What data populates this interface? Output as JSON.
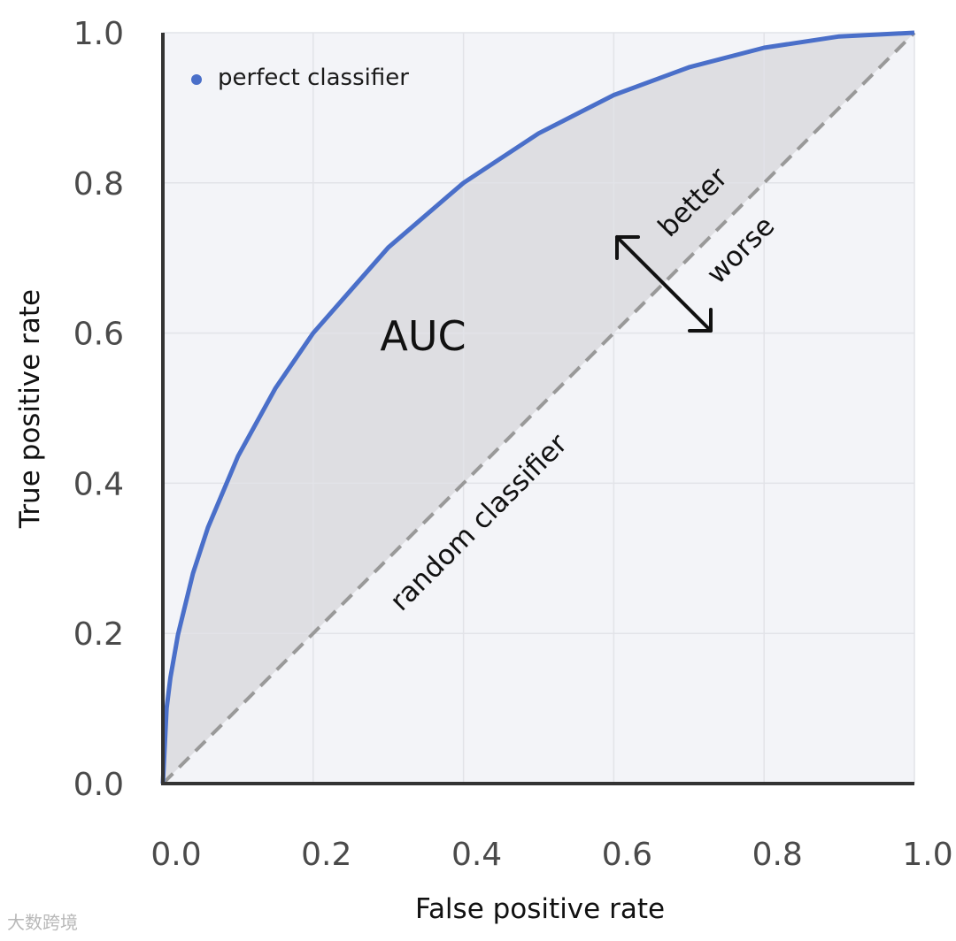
{
  "chart_data": {
    "type": "line",
    "xlabel": "False positive rate",
    "ylabel": "True positive rate",
    "xlim": [
      0.0,
      1.0
    ],
    "ylim": [
      0.0,
      1.0
    ],
    "x_ticks": [
      "0.0",
      "0.2",
      "0.4",
      "0.6",
      "0.8",
      "1.0"
    ],
    "y_ticks": [
      "0.0",
      "0.2",
      "0.4",
      "0.6",
      "0.8",
      "1.0"
    ],
    "grid": true,
    "legend": {
      "placement": "top-left",
      "entries": [
        "perfect classifier"
      ]
    },
    "series": [
      {
        "name": "perfect classifier",
        "style": "solid",
        "color": "#4a6fc9",
        "x": [
          0.0,
          0.005,
          0.01,
          0.02,
          0.04,
          0.06,
          0.1,
          0.15,
          0.2,
          0.3,
          0.4,
          0.5,
          0.6,
          0.7,
          0.8,
          0.9,
          1.0
        ],
        "y": [
          0.0,
          0.1,
          0.141,
          0.198,
          0.28,
          0.341,
          0.436,
          0.527,
          0.6,
          0.714,
          0.8,
          0.866,
          0.917,
          0.954,
          0.98,
          0.995,
          1.0
        ]
      },
      {
        "name": "random classifier",
        "style": "dashed",
        "color": "#999999",
        "x": [
          0.0,
          1.0
        ],
        "y": [
          0.0,
          1.0
        ]
      }
    ],
    "annotations": {
      "area_label": "AUC",
      "diagonal_label": "random classifier",
      "better": "better",
      "worse": "worse"
    }
  },
  "colors": {
    "plot_background": "#f3f4f8",
    "auc_fill": "#dedee2",
    "curve": "#4a6fc9",
    "diagonal": "#999999",
    "grid": "#e2e3e8",
    "axis": "#333333"
  },
  "watermark": "大数跨境"
}
